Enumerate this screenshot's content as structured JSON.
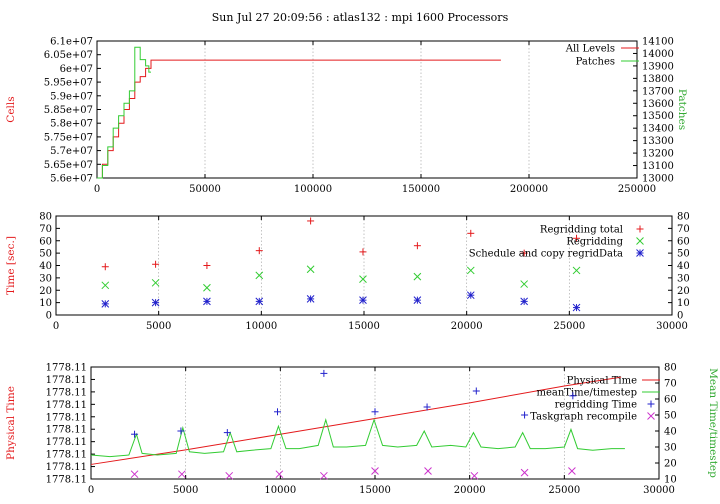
{
  "title": "Sun Jul 27 20:09:56 : atlas132 : mpi 1600 Processors",
  "colors": {
    "red": "#e41a1c",
    "green": "#33cc33",
    "blue": "#2222cc",
    "magenta": "#cc33cc",
    "black": "#000000"
  },
  "chart_data": [
    {
      "type": "line",
      "ylabel": "Cells",
      "y2label": "Patches",
      "xlim": [
        0,
        250000
      ],
      "ylim": [
        56000000,
        61000000
      ],
      "y2lim": [
        13000,
        14100
      ],
      "xticks": [
        "0",
        "50000",
        "100000",
        "150000",
        "200000",
        "250000"
      ],
      "yticks": [
        "5.6e+07",
        "5.65e+07",
        "5.7e+07",
        "5.75e+07",
        "5.8e+07",
        "5.85e+07",
        "5.9e+07",
        "5.95e+07",
        "6e+07",
        "6.05e+07",
        "6.1e+07"
      ],
      "y2ticks": [
        "13000",
        "13100",
        "13200",
        "13300",
        "13400",
        "13500",
        "13600",
        "13700",
        "13800",
        "13900",
        "14000",
        "14100"
      ],
      "legend_position": "top-right",
      "series": [
        {
          "name": "All Levels",
          "color": "#e41a1c",
          "axis": "y1",
          "x": [
            0,
            2500,
            5000,
            7500,
            10000,
            12500,
            15000,
            17500,
            20000,
            22500,
            25000,
            187000
          ],
          "y": [
            56000000,
            56500000,
            57000000,
            57500000,
            58000000,
            58500000,
            58900000,
            59500000,
            59700000,
            60000000,
            60300000,
            60300000
          ]
        },
        {
          "name": "Patches",
          "color": "#33cc33",
          "axis": "y2",
          "x": [
            0,
            2500,
            5000,
            7500,
            10000,
            12500,
            15000,
            17500,
            20000,
            22500,
            24000,
            25000
          ],
          "y": [
            13000,
            13100,
            13250,
            13400,
            13500,
            13600,
            13700,
            14050,
            13950,
            13900,
            13850,
            13850
          ]
        }
      ]
    },
    {
      "type": "scatter",
      "ylabel": "Time [sec.]",
      "xlim": [
        0,
        30000
      ],
      "ylim": [
        0,
        80
      ],
      "xticks": [
        "0",
        "5000",
        "10000",
        "15000",
        "20000",
        "25000",
        "30000"
      ],
      "yticks": [
        "0",
        "10",
        "20",
        "30",
        "40",
        "50",
        "60",
        "70",
        "80"
      ],
      "legend_position": "top-right",
      "series": [
        {
          "name": "Regridding total",
          "color": "#e41a1c",
          "marker": "+",
          "x": [
            2400,
            4850,
            7350,
            9900,
            12400,
            14950,
            17600,
            20200,
            22800,
            25350
          ],
          "y": [
            39,
            41,
            40,
            52,
            76,
            51,
            56,
            66,
            50,
            62
          ]
        },
        {
          "name": "Regridding",
          "color": "#33cc33",
          "marker": "x",
          "x": [
            2400,
            4850,
            7350,
            9900,
            12400,
            14950,
            17600,
            20200,
            22800,
            25350
          ],
          "y": [
            24,
            26,
            22,
            32,
            37,
            29,
            31,
            36,
            25,
            36
          ]
        },
        {
          "name": "Schedule and copy regridData",
          "color": "#2222cc",
          "marker": "*",
          "x": [
            2400,
            4850,
            7350,
            9900,
            12400,
            14950,
            17600,
            20200,
            22800,
            25350
          ],
          "y": [
            9,
            10,
            11,
            11,
            13,
            12,
            12,
            16,
            11,
            6
          ]
        }
      ]
    },
    {
      "type": "line",
      "ylabel": "Physical Time",
      "y2label": "Mean Time/timestep",
      "xlim": [
        0,
        30000
      ],
      "ylim": [
        0,
        100
      ],
      "y2lim": [
        10,
        80
      ],
      "xticks": [
        "0",
        "5000",
        "10000",
        "15000",
        "20000",
        "25000",
        "30000"
      ],
      "yticks": [
        "1778.11",
        "1778.11",
        "1778.11",
        "1778.11",
        "1778.11",
        "1778.11",
        "1778.11",
        "1778.11",
        "1778.11",
        "1778.11"
      ],
      "y2ticks": [
        "10",
        "20",
        "30",
        "40",
        "50",
        "60",
        "70",
        "80"
      ],
      "legend_position": "top-right",
      "series": [
        {
          "name": "Physical Time",
          "color": "#e41a1c",
          "axis": "y1",
          "x": [
            0,
            5000,
            10000,
            15000,
            20000,
            25000,
            28000
          ],
          "y": [
            13,
            26,
            40,
            54,
            68,
            83,
            91
          ]
        },
        {
          "name": "meanTime/timestep",
          "color": "#33cc33",
          "axis": "y2",
          "x": [
            0,
            1000,
            2000,
            2400,
            2700,
            3500,
            4500,
            4850,
            5200,
            6000,
            7000,
            7350,
            7700,
            8500,
            9500,
            9900,
            10300,
            11000,
            12000,
            12400,
            12800,
            13500,
            14500,
            14950,
            15400,
            16200,
            17200,
            17600,
            18000,
            19000,
            19800,
            20200,
            20600,
            21500,
            22400,
            22800,
            23200,
            24000,
            25000,
            25350,
            25700,
            26500,
            27500,
            28200
          ],
          "y": [
            25,
            24,
            25,
            38,
            26,
            25,
            26,
            42,
            27,
            26,
            27,
            39,
            27,
            28,
            29,
            43,
            29,
            29,
            31,
            47,
            30,
            30,
            31,
            47,
            31,
            30,
            31,
            40,
            30,
            31,
            30,
            39,
            30,
            29,
            30,
            39,
            29,
            29,
            30,
            41,
            29,
            28,
            29,
            29
          ]
        },
        {
          "name": "regridding Time",
          "color": "#2222cc",
          "axis": "y2",
          "marker": "+",
          "x": [
            2300,
            4750,
            7200,
            9850,
            12300,
            15000,
            17750,
            20350,
            22900,
            25450
          ],
          "y": [
            38,
            40,
            39,
            52,
            76,
            52,
            55,
            65,
            50,
            62
          ]
        },
        {
          "name": "Taskgraph recompile",
          "color": "#cc33cc",
          "axis": "y2",
          "marker": "x",
          "x": [
            2300,
            4800,
            7300,
            9950,
            12300,
            15000,
            17800,
            20250,
            22900,
            25400
          ],
          "y": [
            13,
            13,
            12,
            13,
            12,
            15,
            15,
            12,
            14,
            15
          ]
        }
      ]
    }
  ]
}
